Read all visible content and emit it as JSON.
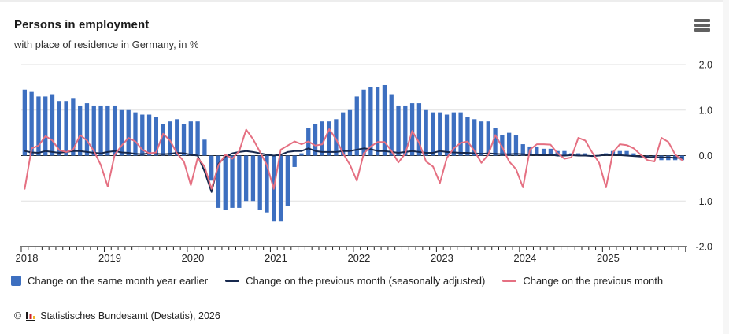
{
  "header": {
    "title": "Persons in employment",
    "subtitle": "with place of residence in Germany, in %"
  },
  "chart_data": {
    "type": "bar",
    "unit": "%",
    "x_years": [
      "2018",
      "2019",
      "2020",
      "2021",
      "2022",
      "2023",
      "2024",
      "2025"
    ],
    "months_per_year": 12,
    "ylim": [
      -2.0,
      2.0
    ],
    "grid": true,
    "legend_position": "bottom",
    "y_ticks": [
      {
        "label": "2.0",
        "value": 2
      },
      {
        "label": "1.0",
        "value": 1
      },
      {
        "label": "0.0",
        "value": 0
      },
      {
        "label": "-1.0",
        "value": -1
      },
      {
        "label": "-2.0",
        "value": -2
      }
    ],
    "series": [
      {
        "name": "Change on the same month year earlier",
        "type": "bar",
        "color": "#3d6fc0",
        "values": [
          1.45,
          1.4,
          1.3,
          1.3,
          1.35,
          1.2,
          1.2,
          1.25,
          1.1,
          1.15,
          1.1,
          1.1,
          1.1,
          1.1,
          1.0,
          1.0,
          0.95,
          0.9,
          0.9,
          0.85,
          0.7,
          0.75,
          0.8,
          0.7,
          0.75,
          0.75,
          0.35,
          -0.55,
          -1.15,
          -1.2,
          -1.15,
          -1.15,
          -1.0,
          -1.0,
          -1.2,
          -1.25,
          -1.45,
          -1.45,
          -1.1,
          -0.25,
          0.05,
          0.6,
          0.7,
          0.75,
          0.75,
          0.8,
          0.95,
          1.0,
          1.3,
          1.45,
          1.5,
          1.5,
          1.55,
          1.35,
          1.1,
          1.1,
          1.15,
          1.15,
          1.0,
          0.95,
          0.95,
          0.9,
          0.95,
          0.95,
          0.85,
          0.8,
          0.75,
          0.75,
          0.6,
          0.45,
          0.5,
          0.45,
          0.25,
          0.2,
          0.2,
          0.15,
          0.15,
          0.1,
          0.1,
          0.05,
          0.05,
          0.05,
          0.0,
          0.0,
          0.05,
          0.1,
          0.1,
          0.1,
          0.05,
          0.0,
          -0.05,
          -0.05,
          -0.1,
          -0.1,
          -0.1,
          -0.1
        ]
      },
      {
        "name": "Change on the previous month (seasonally adjusted)",
        "type": "line",
        "color": "#17294e",
        "values": [
          0.1,
          0.07,
          0.06,
          0.1,
          0.08,
          0.06,
          0.08,
          0.1,
          0.1,
          0.08,
          0.06,
          0.05,
          0.08,
          0.1,
          0.07,
          0.06,
          0.04,
          0.03,
          0.05,
          0.04,
          0.03,
          0.04,
          0.06,
          0.05,
          0.02,
          0.0,
          -0.35,
          -0.8,
          -0.18,
          -0.02,
          0.05,
          0.08,
          0.1,
          0.08,
          0.05,
          0.02,
          0.0,
          0.02,
          0.08,
          0.1,
          0.1,
          0.16,
          0.1,
          0.08,
          0.08,
          0.08,
          0.1,
          0.1,
          0.13,
          0.16,
          0.14,
          0.1,
          0.1,
          0.08,
          0.06,
          0.08,
          0.1,
          0.08,
          0.06,
          0.06,
          0.1,
          0.08,
          0.07,
          0.06,
          0.06,
          0.05,
          0.04,
          0.05,
          0.04,
          0.03,
          0.03,
          0.04,
          0.03,
          0.02,
          0.02,
          0.01,
          0.02,
          0.0,
          0.0,
          0.01,
          0.0,
          0.0,
          -0.01,
          0.0,
          0.02,
          0.02,
          0.01,
          0.0,
          -0.01,
          -0.02,
          -0.03,
          -0.03,
          -0.04,
          -0.04,
          -0.05,
          -0.05
        ]
      },
      {
        "name": "Change on the previous month",
        "type": "line",
        "color": "#e57082",
        "values": [
          -0.73,
          0.16,
          0.22,
          0.43,
          0.33,
          0.12,
          0.08,
          0.13,
          0.45,
          0.33,
          0.1,
          -0.21,
          -0.68,
          0.02,
          0.22,
          0.39,
          0.31,
          0.13,
          0.05,
          0.07,
          0.48,
          0.33,
          0.05,
          -0.13,
          -0.65,
          -0.05,
          -0.24,
          -0.73,
          -0.21,
          0.02,
          -0.07,
          0.1,
          0.57,
          0.36,
          0.08,
          -0.21,
          -0.73,
          0.13,
          0.22,
          0.31,
          0.25,
          0.31,
          0.22,
          0.25,
          0.58,
          0.36,
          0.05,
          -0.2,
          -0.55,
          0.05,
          0.2,
          0.3,
          0.3,
          0.1,
          -0.15,
          0.05,
          0.54,
          0.28,
          -0.13,
          -0.24,
          -0.6,
          -0.05,
          0.16,
          0.28,
          0.31,
          0.1,
          -0.16,
          0.02,
          0.45,
          0.19,
          -0.13,
          -0.3,
          -0.7,
          0.13,
          0.25,
          0.25,
          0.24,
          0.05,
          -0.07,
          -0.04,
          0.39,
          0.33,
          0.07,
          -0.16,
          -0.7,
          0.07,
          0.25,
          0.23,
          0.16,
          0.02,
          -0.1,
          -0.13,
          0.39,
          0.3,
          0.02,
          -0.1
        ]
      }
    ]
  },
  "footer": {
    "copyright": "©",
    "source": "Statistisches Bundesamt (Destatis), 2026"
  }
}
